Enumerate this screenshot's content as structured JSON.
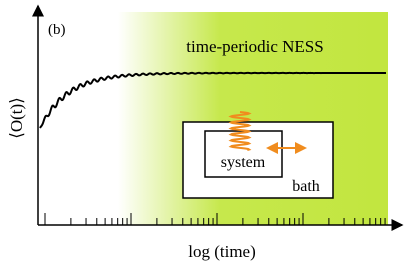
{
  "panel_label": "(b)",
  "region_label": "time-periodic NESS",
  "y_label": "⟨O(t)⟩",
  "x_label": "log (time)",
  "inset": {
    "system": "system",
    "bath": "bath"
  }
}
